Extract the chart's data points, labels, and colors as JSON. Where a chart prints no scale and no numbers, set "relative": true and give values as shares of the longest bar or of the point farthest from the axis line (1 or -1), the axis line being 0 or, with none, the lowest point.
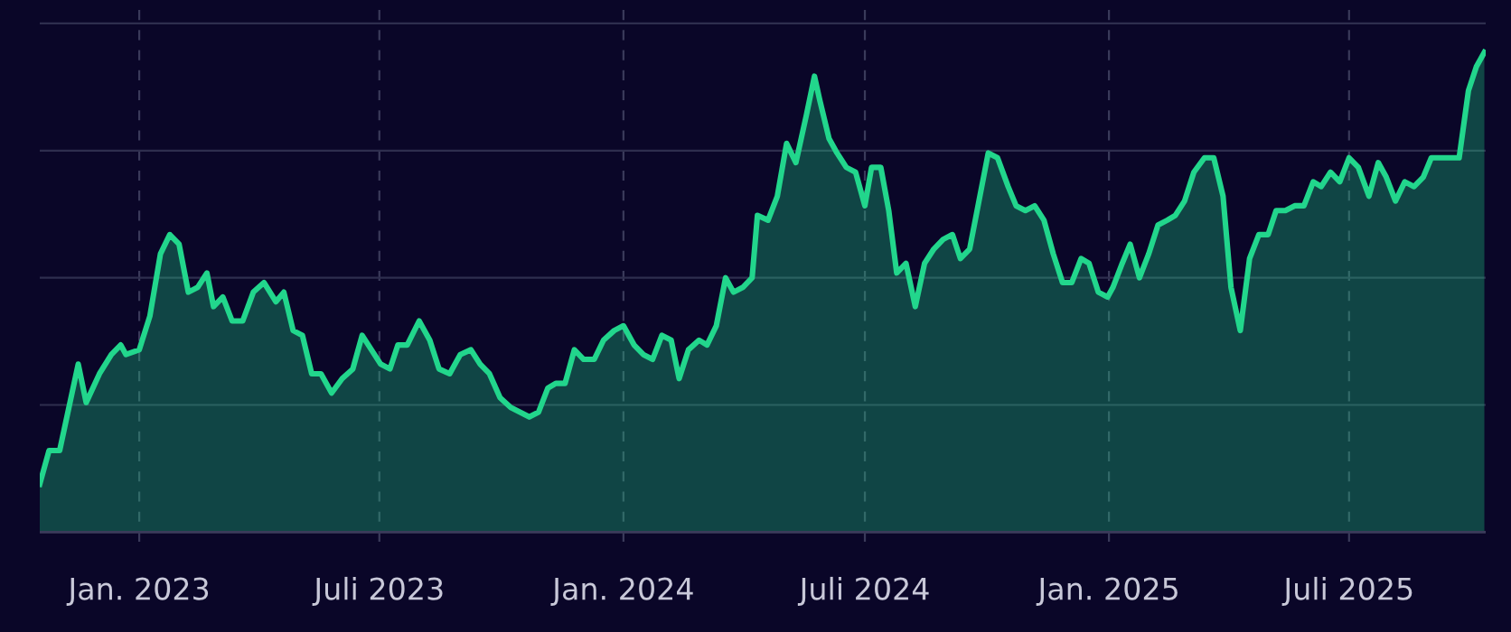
{
  "chart_data": {
    "type": "area",
    "relative": true,
    "grid": true,
    "color": "#22d68c",
    "x": [
      "2022-10-18",
      "2022-10-25",
      "2022-11-02",
      "2022-11-16",
      "2022-11-22",
      "2022-12-02",
      "2022-12-11",
      "2022-12-18",
      "2022-12-22",
      "2023-01-01",
      "2023-01-09",
      "2023-01-17",
      "2023-01-24",
      "2023-01-31",
      "2023-02-07",
      "2023-02-14",
      "2023-02-21",
      "2023-02-26",
      "2023-03-05",
      "2023-03-12",
      "2023-03-20",
      "2023-03-28",
      "2023-04-05",
      "2023-04-14",
      "2023-04-20",
      "2023-04-27",
      "2023-05-04",
      "2023-05-11",
      "2023-05-18",
      "2023-05-26",
      "2023-06-03",
      "2023-06-11",
      "2023-06-18",
      "2023-06-25",
      "2023-07-02",
      "2023-07-09",
      "2023-07-15",
      "2023-07-22",
      "2023-07-31",
      "2023-08-08",
      "2023-08-15",
      "2023-08-23",
      "2023-08-31",
      "2023-09-08",
      "2023-09-15",
      "2023-09-22",
      "2023-09-30",
      "2023-10-08",
      "2023-10-15",
      "2023-10-22",
      "2023-10-29",
      "2023-11-05",
      "2023-11-11",
      "2023-11-18",
      "2023-11-25",
      "2023-12-02",
      "2023-12-10",
      "2023-12-17",
      "2023-12-25",
      "2024-01-01",
      "2024-01-09",
      "2024-01-16",
      "2024-01-23",
      "2024-01-30",
      "2024-02-06",
      "2024-02-12",
      "2024-02-19",
      "2024-02-27",
      "2024-03-04",
      "2024-03-11",
      "2024-03-18",
      "2024-03-24",
      "2024-03-31",
      "2024-04-07",
      "2024-04-11",
      "2024-04-19",
      "2024-04-26",
      "2024-05-03",
      "2024-05-10",
      "2024-05-18",
      "2024-05-24",
      "2024-05-28",
      "2024-06-04",
      "2024-06-10",
      "2024-06-17",
      "2024-06-24",
      "2024-07-01",
      "2024-07-06",
      "2024-07-13",
      "2024-07-19",
      "2024-07-25",
      "2024-08-01",
      "2024-08-08",
      "2024-08-15",
      "2024-08-22",
      "2024-08-29",
      "2024-09-05",
      "2024-09-11",
      "2024-09-18",
      "2024-09-25",
      "2024-10-02",
      "2024-10-09",
      "2024-10-17",
      "2024-10-23",
      "2024-10-30",
      "2024-11-06",
      "2024-11-13",
      "2024-11-20",
      "2024-11-27",
      "2024-12-04",
      "2024-12-11",
      "2024-12-17",
      "2024-12-24",
      "2024-12-31",
      "2025-01-04",
      "2025-01-11",
      "2025-01-17",
      "2025-01-24",
      "2025-01-31",
      "2025-02-07",
      "2025-02-14",
      "2025-02-20",
      "2025-02-27",
      "2025-03-06",
      "2025-03-14",
      "2025-03-21",
      "2025-03-28",
      "2025-04-03",
      "2025-04-10",
      "2025-04-17",
      "2025-04-24",
      "2025-05-01",
      "2025-05-07",
      "2025-05-14",
      "2025-05-21",
      "2025-05-28",
      "2025-06-04",
      "2025-06-10",
      "2025-06-17",
      "2025-06-24",
      "2025-07-01",
      "2025-07-08",
      "2025-07-16",
      "2025-07-23",
      "2025-07-29",
      "2025-08-05",
      "2025-08-12",
      "2025-08-19",
      "2025-08-26",
      "2025-09-01",
      "2025-09-08",
      "2025-09-15",
      "2025-09-22",
      "2025-09-29",
      "2025-10-05",
      "2025-10-11"
    ],
    "values": [
      0.1,
      0.17,
      0.17,
      0.35,
      0.27,
      0.33,
      0.37,
      0.39,
      0.37,
      0.38,
      0.45,
      0.58,
      0.62,
      0.6,
      0.5,
      0.51,
      0.54,
      0.47,
      0.49,
      0.44,
      0.44,
      0.5,
      0.52,
      0.48,
      0.5,
      0.42,
      0.41,
      0.33,
      0.33,
      0.29,
      0.32,
      0.34,
      0.41,
      0.38,
      0.35,
      0.34,
      0.39,
      0.39,
      0.44,
      0.4,
      0.34,
      0.33,
      0.37,
      0.38,
      0.35,
      0.33,
      0.28,
      0.26,
      0.25,
      0.24,
      0.25,
      0.3,
      0.31,
      0.31,
      0.38,
      0.36,
      0.36,
      0.4,
      0.42,
      0.43,
      0.39,
      0.37,
      0.36,
      0.41,
      0.4,
      0.32,
      0.38,
      0.4,
      0.39,
      0.43,
      0.53,
      0.5,
      0.51,
      0.53,
      0.66,
      0.65,
      0.7,
      0.81,
      0.77,
      0.87,
      0.95,
      0.9,
      0.82,
      0.79,
      0.76,
      0.75,
      0.68,
      0.76,
      0.76,
      0.67,
      0.54,
      0.56,
      0.47,
      0.56,
      0.59,
      0.61,
      0.62,
      0.57,
      0.59,
      0.69,
      0.79,
      0.78,
      0.72,
      0.68,
      0.67,
      0.68,
      0.65,
      0.58,
      0.52,
      0.52,
      0.57,
      0.56,
      0.5,
      0.49,
      0.51,
      0.56,
      0.6,
      0.53,
      0.58,
      0.64,
      0.65,
      0.66,
      0.69,
      0.75,
      0.78,
      0.78,
      0.7,
      0.51,
      0.42,
      0.57,
      0.62,
      0.62,
      0.67,
      0.67,
      0.68,
      0.68,
      0.73,
      0.72,
      0.75,
      0.73,
      0.78,
      0.76,
      0.7,
      0.77,
      0.74,
      0.69,
      0.73,
      0.72,
      0.74,
      0.78,
      0.78,
      0.78,
      0.78,
      0.92,
      0.97,
      1
    ],
    "xlim": [
      "2022-10-18",
      "2025-10-12"
    ],
    "xticks": [
      {
        "value": "2023-01-01",
        "label": "Jan. 2023"
      },
      {
        "value": "2023-07-01",
        "label": "Juli 2023"
      },
      {
        "value": "2024-01-01",
        "label": "Jan. 2024"
      },
      {
        "value": "2024-07-01",
        "label": "Juli 2024"
      },
      {
        "value": "2025-01-01",
        "label": "Jan. 2025"
      },
      {
        "value": "2025-07-01",
        "label": "Juli 2025"
      }
    ]
  }
}
